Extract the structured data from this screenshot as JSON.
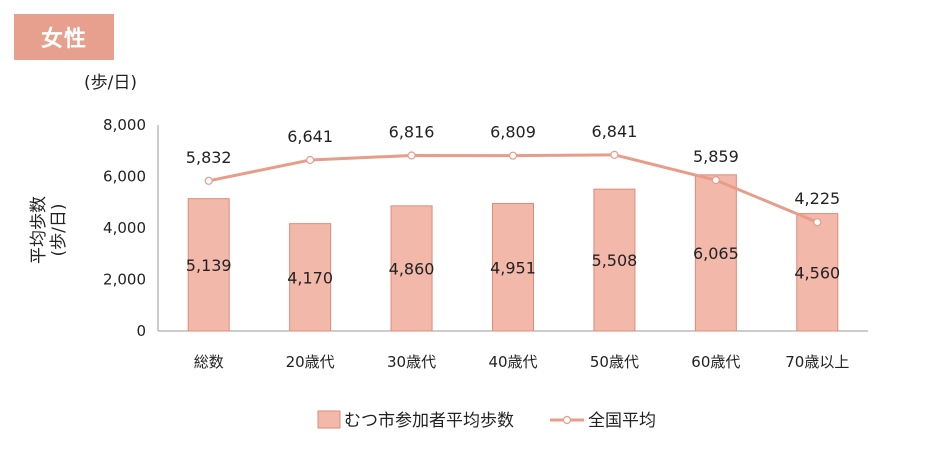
{
  "badge": {
    "label": "女性"
  },
  "chart_data": {
    "type": "bar+line",
    "unit_label": "(歩/日)",
    "ylabel_lines": [
      "平均歩数",
      "(歩/日)"
    ],
    "categories": [
      "総数",
      "20歳代",
      "30歳代",
      "40歳代",
      "50歳代",
      "60歳代",
      "70歳以上"
    ],
    "ylim": [
      0,
      8000
    ],
    "yticks": [
      0,
      2000,
      4000,
      6000,
      8000
    ],
    "ytick_labels": [
      "0",
      "2,000",
      "4,000",
      "6,000",
      "8,000"
    ],
    "series": [
      {
        "name": "むつ市参加者平均歩数",
        "kind": "bar",
        "color": "#f2b8a9",
        "stroke": "#e28a78",
        "values": [
          5139,
          4170,
          4860,
          4951,
          5508,
          6065,
          4560
        ],
        "labels": [
          "5,139",
          "4,170",
          "4,860",
          "4,951",
          "5,508",
          "6,065",
          "4,560"
        ]
      },
      {
        "name": "全国平均",
        "kind": "line",
        "color": "#e89c8a",
        "values": [
          5832,
          6641,
          6816,
          6809,
          6841,
          5859,
          4225
        ],
        "labels": [
          "5,832",
          "6,641",
          "6,816",
          "6,809",
          "6,841",
          "5,859",
          "4,225"
        ]
      }
    ],
    "grid": false,
    "legend_position": "bottom"
  }
}
